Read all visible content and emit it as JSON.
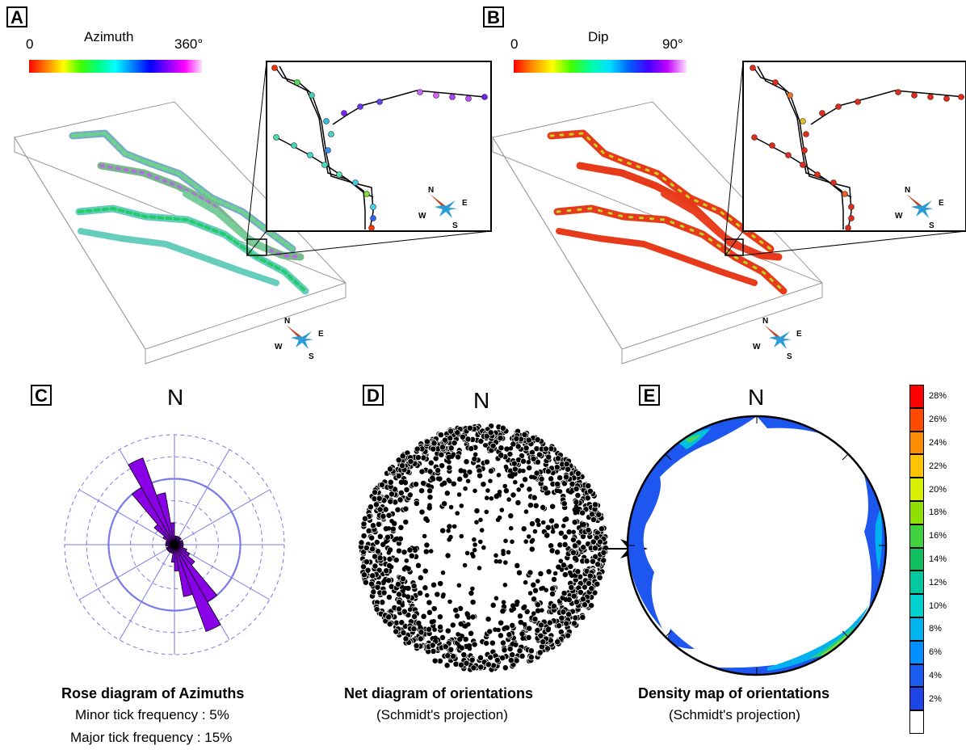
{
  "panels": {
    "a": {
      "letter": "A",
      "colorbar": {
        "min": "0",
        "title": "Azimuth",
        "max": "360°"
      }
    },
    "b": {
      "letter": "B",
      "colorbar": {
        "min": "0",
        "title": "Dip",
        "max": "90°"
      }
    },
    "c": {
      "letter": "C",
      "north": "N",
      "caption_title": "Rose diagram of Azimuths",
      "caption_line1": "Minor tick frequency : 5%",
      "caption_line2": "Major tick frequency : 15%"
    },
    "d": {
      "letter": "D",
      "north": "N",
      "caption_title": "Net diagram of orientations",
      "caption_sub": "(Schmidt's projection)"
    },
    "e": {
      "letter": "E",
      "north": "N",
      "caption_title": "Density map of orientations",
      "caption_sub": "(Schmidt's projection)"
    }
  },
  "compass": {
    "n": "N",
    "e": "E",
    "w": "W",
    "s": "S"
  },
  "density_legend": {
    "labels": [
      "28%",
      "26%",
      "24%",
      "22%",
      "20%",
      "18%",
      "16%",
      "14%",
      "12%",
      "10%",
      "8%",
      "6%",
      "4%",
      "2%"
    ],
    "colors": [
      "#ff0000",
      "#ff4a00",
      "#ff8c00",
      "#ffc400",
      "#d8f000",
      "#8fe000",
      "#3fd23f",
      "#10c060",
      "#00c8a0",
      "#00d2d0",
      "#00b4f0",
      "#0090ff",
      "#1a5cf0",
      "#1e46e6",
      "#ffffff"
    ]
  },
  "chart_data": {
    "type": "rose",
    "categories_deg": [
      0,
      10,
      20,
      30,
      40,
      50,
      60,
      70,
      80,
      90,
      100,
      110,
      120,
      130,
      140,
      150,
      160,
      170,
      180,
      190,
      200,
      210,
      220,
      230,
      240,
      250,
      260,
      270,
      280,
      290,
      300,
      310,
      320,
      330,
      340,
      350
    ],
    "values_percent": [
      2,
      2,
      2,
      2,
      2,
      1.5,
      2,
      2,
      2,
      2,
      2,
      3,
      4,
      6,
      15,
      21,
      12,
      6,
      4,
      2,
      2,
      2,
      2,
      2,
      2,
      1.5,
      2,
      2,
      2,
      2,
      3,
      6,
      15,
      21,
      12,
      5
    ],
    "minor_tick": 5,
    "major_tick": 15,
    "color": "#8a00e6"
  }
}
